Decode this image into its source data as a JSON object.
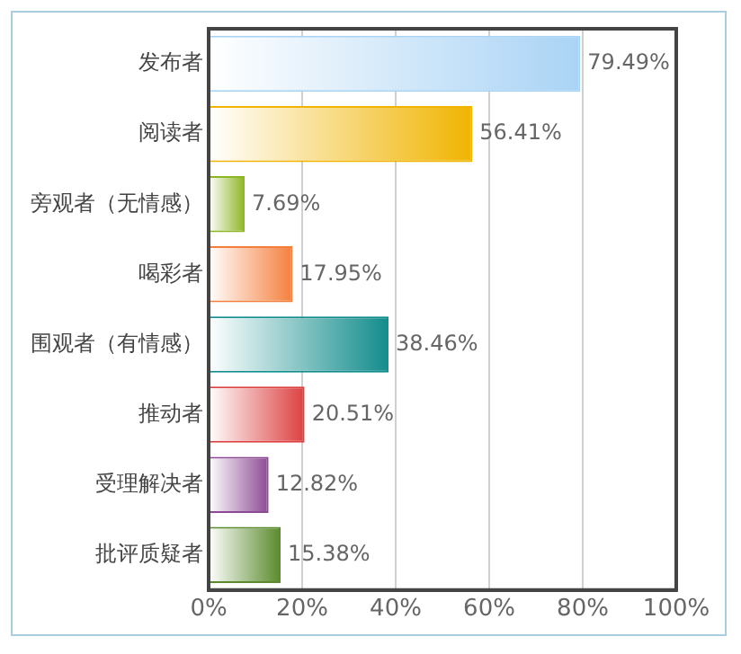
{
  "chart_data": {
    "type": "bar",
    "orientation": "horizontal",
    "categories": [
      "发布者",
      "阅读者",
      "旁观者（无情感）",
      "喝彩者",
      "围观者（有情感）",
      "推动者",
      "受理解决者",
      "批评质疑者"
    ],
    "values": [
      79.49,
      56.41,
      7.69,
      17.95,
      38.46,
      20.51,
      12.82,
      15.38
    ],
    "colors": [
      "#a9d3f5",
      "#f0b400",
      "#8db524",
      "#f47f3c",
      "#138c8c",
      "#dc4040",
      "#8c4a94",
      "#5a8a2c"
    ],
    "value_labels": [
      "79.49%",
      "56.41%",
      "7.69%",
      "17.95%",
      "38.46%",
      "20.51%",
      "12.82%",
      "15.38%"
    ],
    "xlim": [
      0,
      100
    ],
    "xticks": [
      {
        "value": 0,
        "label": "0%"
      },
      {
        "value": 20,
        "label": "20%"
      },
      {
        "value": 40,
        "label": "40%"
      },
      {
        "value": 60,
        "label": "60%"
      },
      {
        "value": 80,
        "label": "80%"
      },
      {
        "value": 100,
        "label": "100%"
      }
    ],
    "grid": "x",
    "legend": false
  }
}
